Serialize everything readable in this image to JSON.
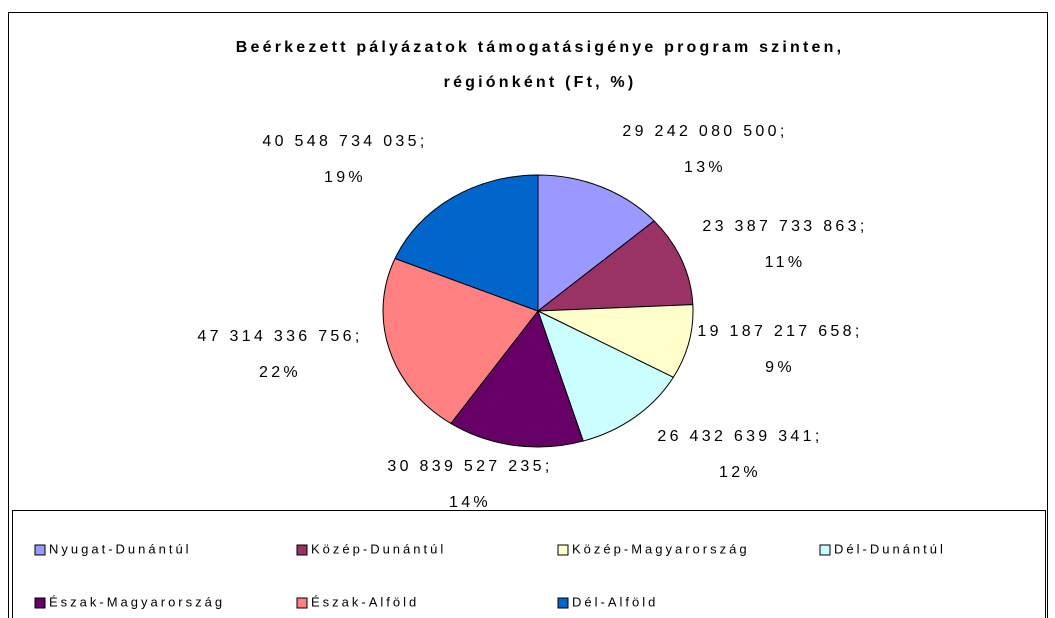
{
  "chart_data": {
    "type": "pie",
    "title": [
      "Beérkezett pályázatok támogatásigénye program szinten,",
      "régiónként (Ft, %)"
    ],
    "categories": [
      "Nyugat-Dunántúl",
      "Közép-Dunántúl",
      "Közép-Magyarország",
      "Dél-Dunántúl",
      "Észak-Magyarország",
      "Észak-Alföld",
      "Dél-Alföld"
    ],
    "values": [
      29242080500,
      23387733863,
      19187217658,
      26432639341,
      30839527235,
      47314336756,
      40548734035
    ],
    "value_labels": [
      "29 242 080 500;",
      "23 387 733 863;",
      "19 187 217 658;",
      "26 432 639 341;",
      "30 839 527 235;",
      "47 314 336 756;",
      "40 548 734 035;"
    ],
    "percents": [
      13,
      11,
      9,
      12,
      14,
      22,
      19
    ],
    "percent_labels": [
      "13%",
      "11%",
      "9%",
      "12%",
      "14%",
      "22%",
      "19%"
    ],
    "colors": [
      "#9999ff",
      "#993366",
      "#ffffcc",
      "#ccffff",
      "#660066",
      "#ff8080",
      "#0066cc"
    ],
    "legend": "bottom"
  }
}
